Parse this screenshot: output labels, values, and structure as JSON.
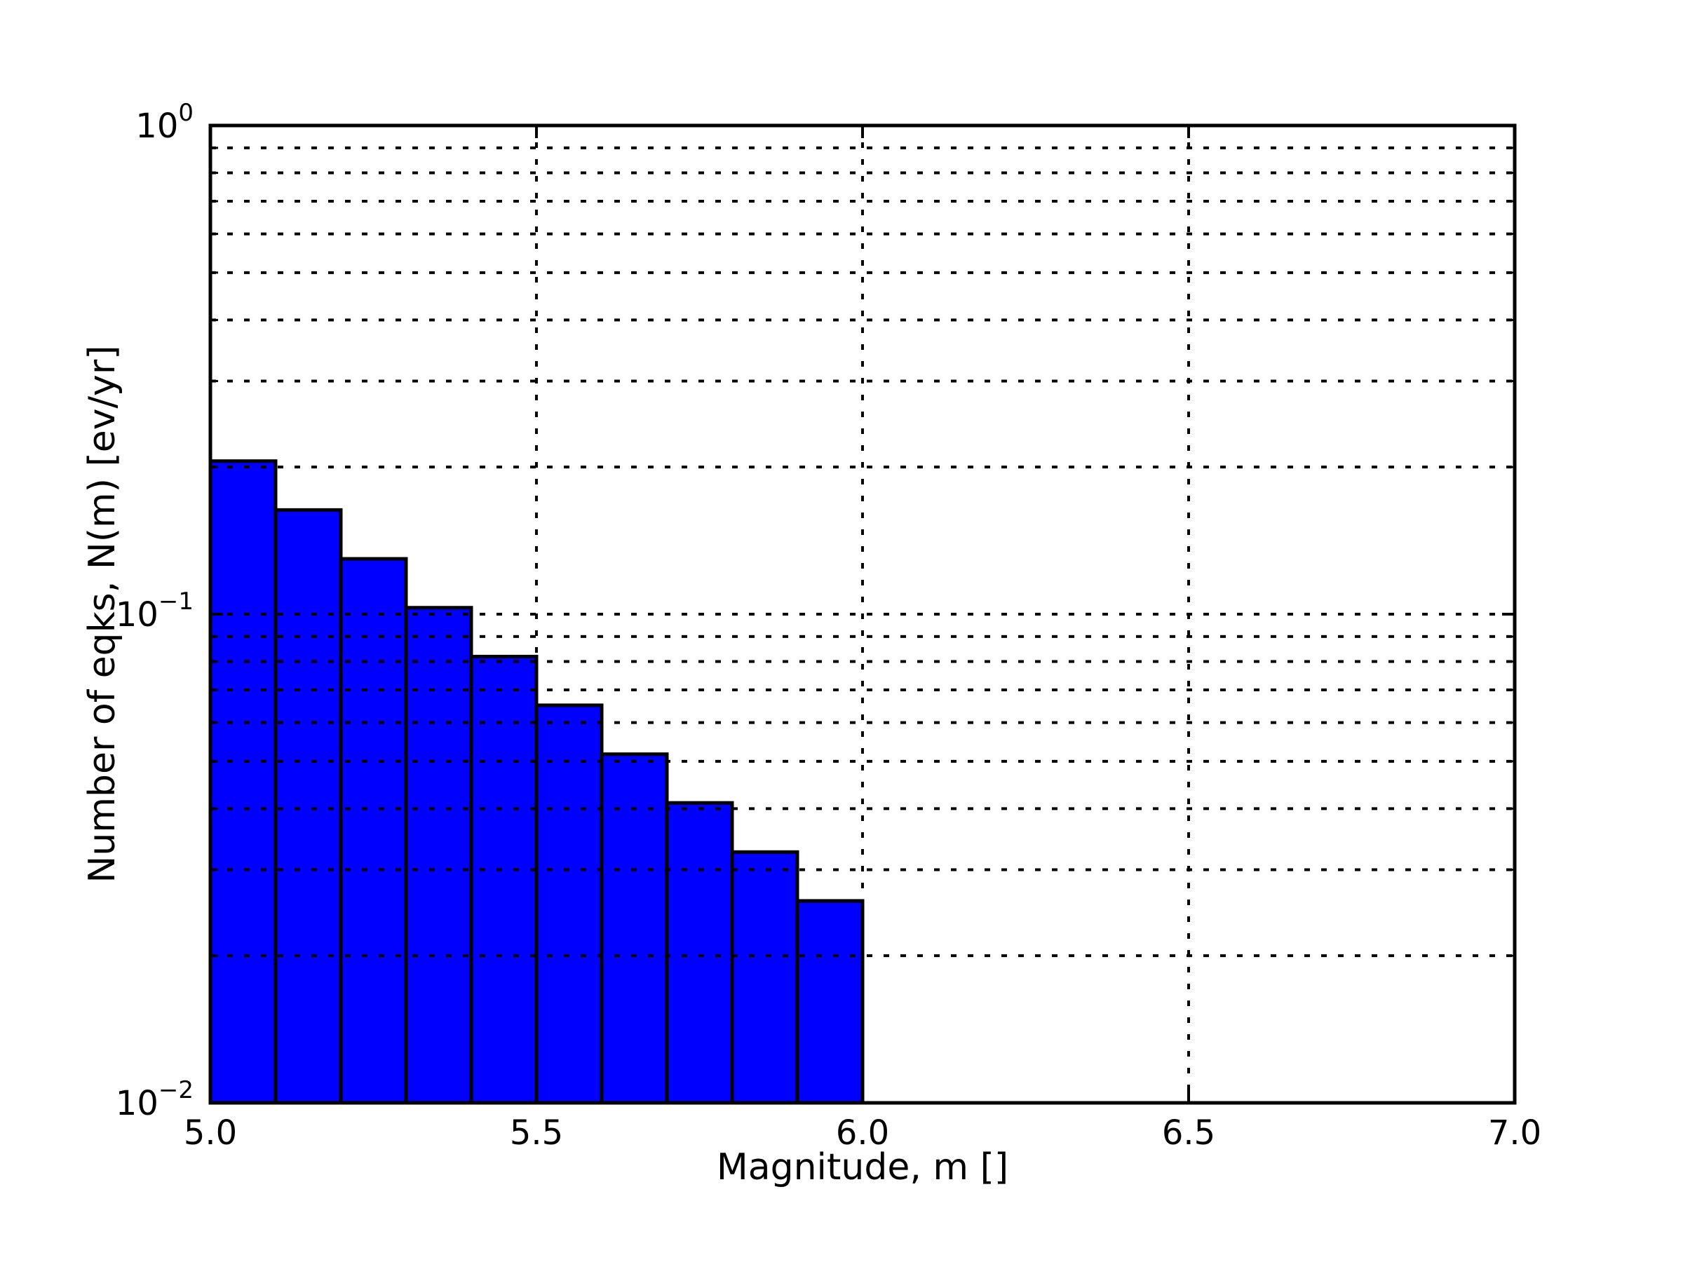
{
  "chart_data": {
    "type": "bar",
    "subtype": "histogram",
    "xlabel": "Magnitude, m []",
    "ylabel": "Number of eqks, N(m) [ev/yr]",
    "xlim": [
      5.0,
      7.0
    ],
    "ylim_log10": [
      -2,
      0
    ],
    "y_scale": "log",
    "grid": "dotted, black, major and minor, drawn above bars",
    "legend": "none",
    "x_ticks": [
      {
        "value": 5.0,
        "label": "5.0"
      },
      {
        "value": 5.5,
        "label": "5.5"
      },
      {
        "value": 6.0,
        "label": "6.0"
      },
      {
        "value": 6.5,
        "label": "6.5"
      },
      {
        "value": 7.0,
        "label": "7.0"
      }
    ],
    "y_ticks": [
      {
        "value": 1.0,
        "base": "10",
        "exponent": "0"
      },
      {
        "value": 0.1,
        "base": "10",
        "exponent": "-1"
      },
      {
        "value": 0.01,
        "base": "10",
        "exponent": "-2"
      }
    ],
    "bin_edges": [
      5.0,
      5.1,
      5.2,
      5.3,
      5.4,
      5.5,
      5.6,
      5.7,
      5.8,
      5.9,
      6.0
    ],
    "values": [
      0.2057,
      0.1634,
      0.1298,
      0.1031,
      0.0819,
      0.0651,
      0.0517,
      0.0411,
      0.0326,
      0.0259
    ],
    "bar_color": "#0000ff",
    "bar_edge_color": "#000000",
    "axis_color": "#000000",
    "background_color": "#ffffff"
  }
}
